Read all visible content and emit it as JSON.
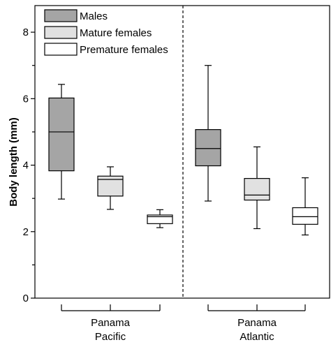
{
  "chart_data": {
    "type": "box",
    "ylabel": "Body length (mm)",
    "ylim": [
      0,
      8.8
    ],
    "yticks": [
      0,
      2,
      4,
      6,
      8
    ],
    "groups": [
      {
        "label_lines": [
          "Panama",
          "Pacific"
        ]
      },
      {
        "label_lines": [
          "Panama",
          "Atlantic"
        ]
      }
    ],
    "series": [
      {
        "name": "Males",
        "color": "#a5a5a5",
        "boxes": [
          {
            "min": 2.98,
            "q1": 3.83,
            "median": 5.0,
            "q3": 6.02,
            "max": 6.43
          },
          {
            "min": 2.92,
            "q1": 3.98,
            "median": 4.5,
            "q3": 5.07,
            "max": 7.0
          }
        ]
      },
      {
        "name": "Mature females",
        "color": "#e1e1e1",
        "boxes": [
          {
            "min": 2.67,
            "q1": 3.07,
            "median": 3.57,
            "q3": 3.67,
            "max": 3.95
          },
          {
            "min": 2.09,
            "q1": 2.95,
            "median": 3.1,
            "q3": 3.6,
            "max": 4.55
          }
        ]
      },
      {
        "name": "Premature females",
        "color": "#ffffff",
        "boxes": [
          {
            "min": 2.12,
            "q1": 2.24,
            "median": 2.45,
            "q3": 2.5,
            "max": 2.66
          },
          {
            "min": 1.9,
            "q1": 2.22,
            "median": 2.45,
            "q3": 2.72,
            "max": 3.62
          }
        ]
      }
    ],
    "legend_position": "top-left",
    "grid": false,
    "group_divider": "dashed"
  }
}
